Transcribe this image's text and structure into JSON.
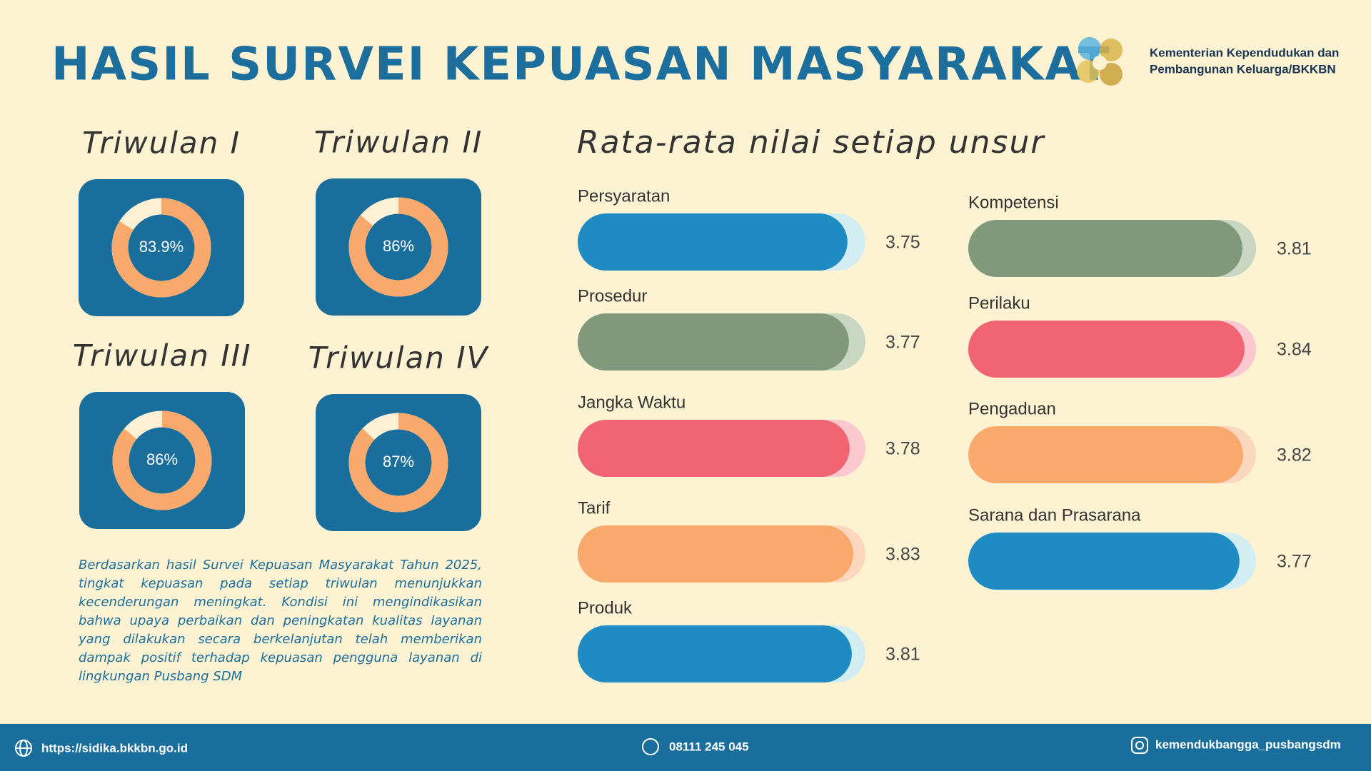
{
  "header": {
    "title": "HASIL SURVEI KEPUASAN MASYARAKAT",
    "org": [
      "Kementerian Kependudukan dan",
      "Pembangunan Keluarga/BKKBN"
    ]
  },
  "chart_data": [
    {
      "type": "donut",
      "title": "Triwulan I",
      "values": [
        83.9
      ],
      "value_labels": [
        "83.9%"
      ],
      "ylim": [
        0,
        100
      ],
      "color": "#f8a96b",
      "track_color": "#fdf0d4",
      "panel_color": "#1a6e9c"
    },
    {
      "type": "donut",
      "title": "Triwulan II",
      "values": [
        86
      ],
      "value_labels": [
        "86%"
      ],
      "ylim": [
        0,
        100
      ],
      "color": "#f8a96b",
      "track_color": "#fdf0d4",
      "panel_color": "#1a6e9c"
    },
    {
      "type": "donut",
      "title": "Triwulan III",
      "values": [
        86
      ],
      "value_labels": [
        "86%"
      ],
      "ylim": [
        0,
        100
      ],
      "color": "#f8a96b",
      "track_color": "#fdf0d4",
      "panel_color": "#1a6e9c"
    },
    {
      "type": "donut",
      "title": "Triwulan IV",
      "values": [
        87
      ],
      "value_labels": [
        "87%"
      ],
      "ylim": [
        0,
        100
      ],
      "color": "#f8a96b",
      "track_color": "#fdf0d4",
      "panel_color": "#1a6e9c"
    },
    {
      "type": "bar",
      "orientation": "horizontal",
      "title": "Rata-rata nilai setiap unsur",
      "categories": [
        "Persyaratan",
        "Prosedur",
        "Jangka Waktu",
        "Tarif",
        "Produk",
        "Kompetensi",
        "Perilaku",
        "Pengaduan",
        "Sarana dan Prasarana"
      ],
      "values": [
        3.75,
        3.77,
        3.78,
        3.83,
        3.81,
        3.81,
        3.84,
        3.82,
        3.77
      ],
      "colors": [
        "#1f8bc3",
        "#81997b",
        "#f06474",
        "#f8a96b",
        "#1f8bc3",
        "#81997b",
        "#f06474",
        "#f8a96b",
        "#1f8bc3"
      ],
      "track_colors": [
        "#d3eef3",
        "#c9d6c2",
        "#fcc8cf",
        "#fcd7c0",
        "#d3eef3",
        "#c9d6c2",
        "#fcc8cf",
        "#fcd7c0",
        "#d3eef3"
      ],
      "xlim": [
        0,
        4
      ]
    }
  ],
  "description": "Berdasarkan hasil Survei Kepuasan Masyarakat Tahun 2025, tingkat kepuasan pada setiap triwulan menunjukkan kecenderungan meningkat. Kondisi ini mengindikasikan bahwa upaya perbaikan dan peningkatan kualitas layanan yang dilakukan secara berkelanjutan telah memberikan dampak positif terhadap kepuasan pengguna layanan di lingkungan Pusbang SDM",
  "footer": {
    "website": "https://sidika.bkkbn.go.id",
    "phone": "08111 245 045",
    "instagram": "kemendukbangga_pusbangsdm"
  }
}
